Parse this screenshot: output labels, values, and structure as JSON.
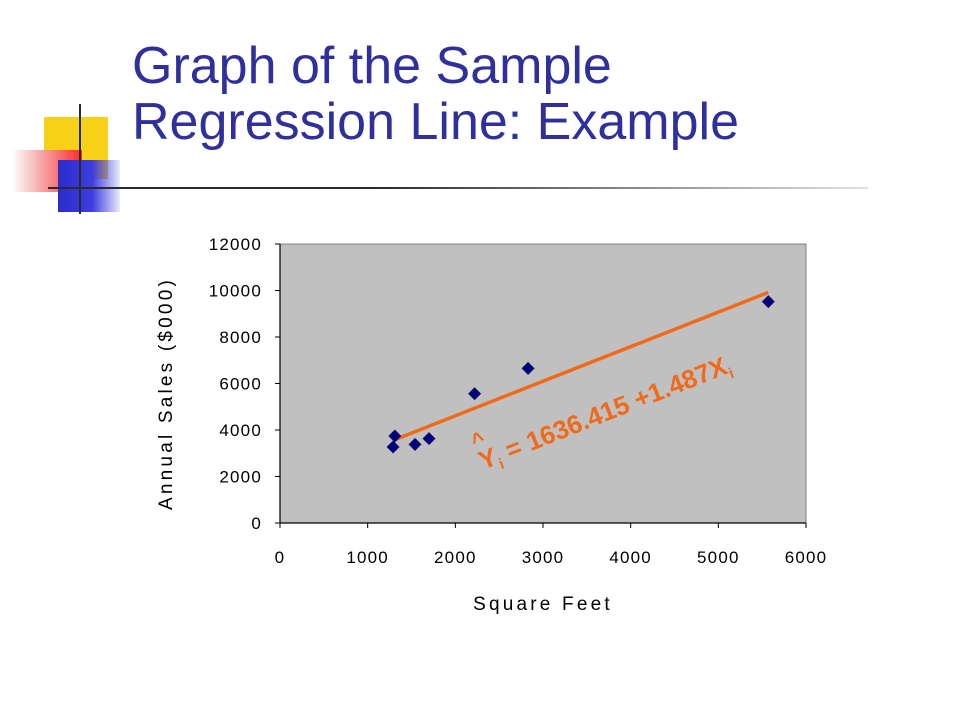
{
  "slide": {
    "title_line1": "Graph of the Sample",
    "title_line2": "Regression Line: Example"
  },
  "colors": {
    "title": "#2f2f9e",
    "plot_background": "#c0c0c0",
    "marker": "#000080",
    "regression_line": "#f06a1a"
  },
  "chart_data": {
    "type": "scatter",
    "title": "",
    "xlabel": "Square Feet",
    "ylabel": "Annual Sales ($000)",
    "xlim": [
      0,
      6000
    ],
    "ylim": [
      0,
      12000
    ],
    "xticks": [
      0,
      1000,
      2000,
      3000,
      4000,
      5000,
      6000
    ],
    "yticks": [
      0,
      2000,
      4000,
      6000,
      8000,
      10000,
      12000
    ],
    "grid": false,
    "legend": "none",
    "series": [
      {
        "marker": "diamond",
        "points": [
          {
            "x": 1310,
            "y": 3740
          },
          {
            "x": 1290,
            "y": 3270
          },
          {
            "x": 1540,
            "y": 3380
          },
          {
            "x": 1700,
            "y": 3630
          },
          {
            "x": 2220,
            "y": 5560
          },
          {
            "x": 2830,
            "y": 6650
          },
          {
            "x": 5570,
            "y": 9520
          }
        ]
      }
    ],
    "regression_line": {
      "intercept": 1636.415,
      "slope": 1.487,
      "x_range": [
        1290,
        5570
      ]
    },
    "annotation": {
      "hat": "^",
      "y": "Y",
      "y_sub": "i",
      "equation": " = 1636.415 +1.487X",
      "x_sub": "i"
    }
  }
}
